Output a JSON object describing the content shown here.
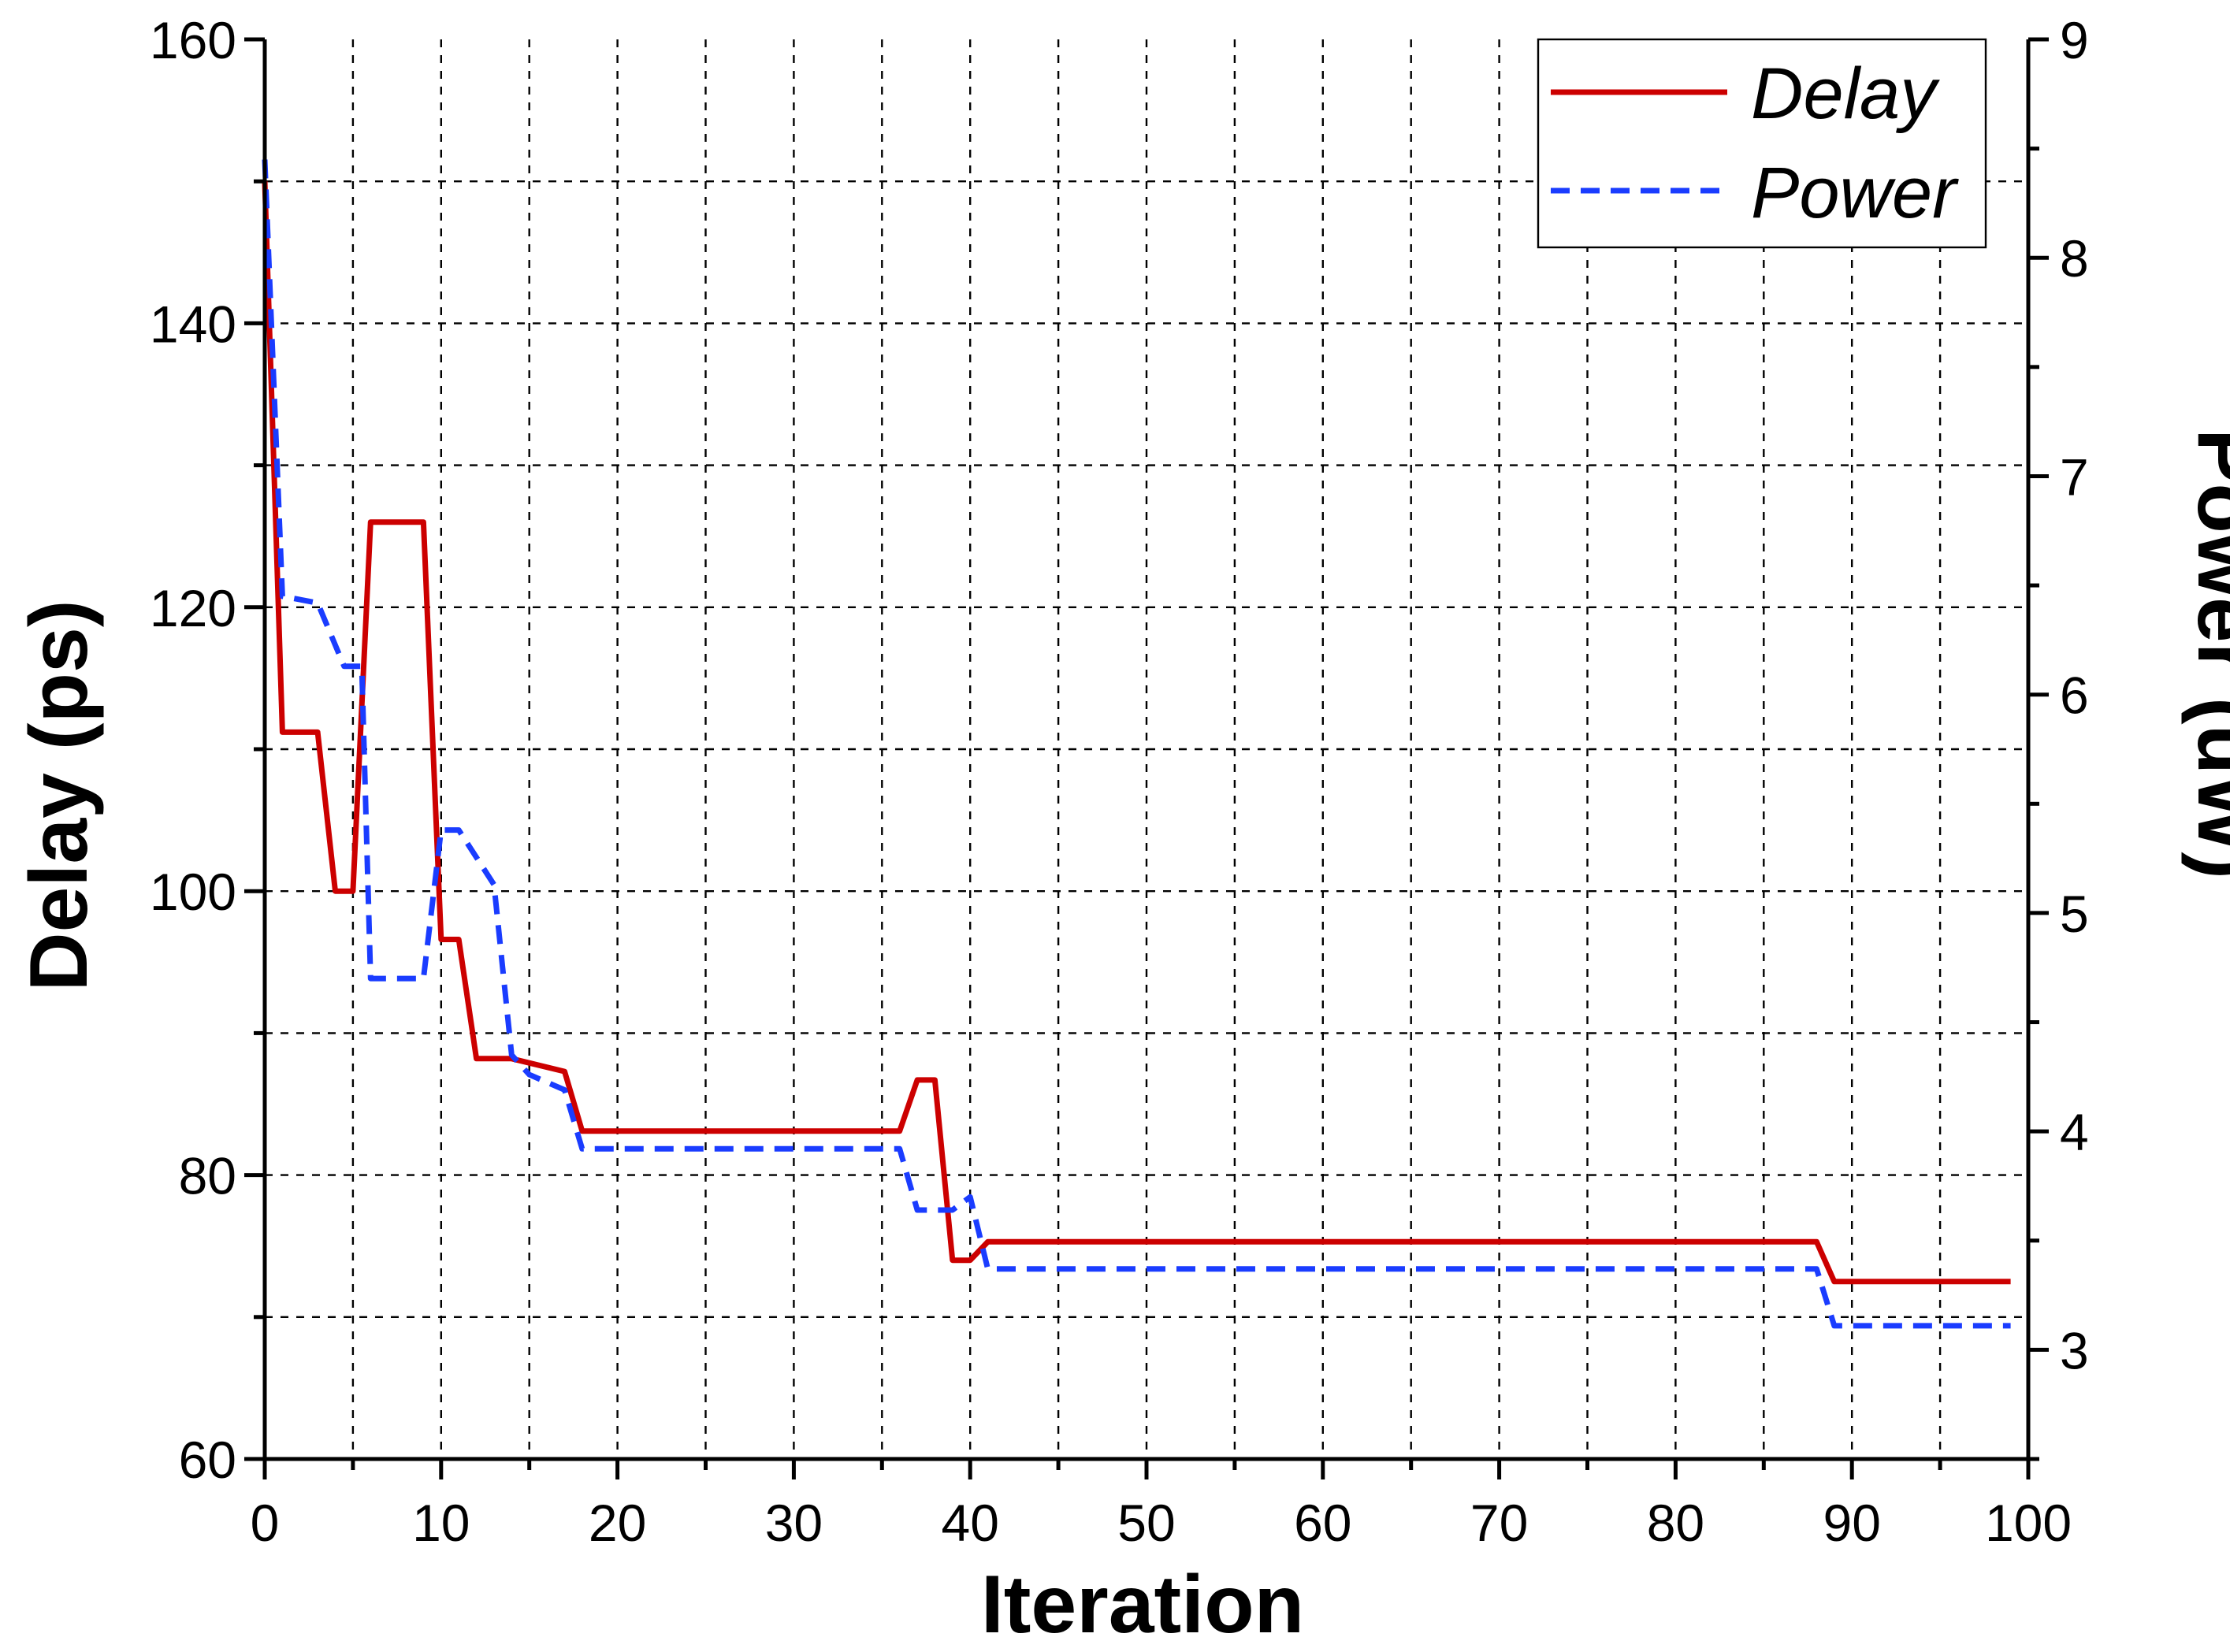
{
  "chart_data": {
    "type": "line",
    "title": "",
    "xlabel": "Iteration",
    "ylabel": "Delay (ps)",
    "y2label": "Power (uW)",
    "xlim": [
      0,
      100
    ],
    "ylim": [
      60,
      160
    ],
    "y2lim": [
      2.5,
      9
    ],
    "x_ticks": [
      0,
      10,
      20,
      30,
      40,
      50,
      60,
      70,
      80,
      90,
      100
    ],
    "x_tick_labels": [
      "0",
      "10",
      "20",
      "30",
      "40",
      "50",
      "60",
      "70",
      "80",
      "90",
      "100"
    ],
    "y_ticks": [
      60,
      80,
      100,
      120,
      140,
      160
    ],
    "y_tick_labels": [
      "60",
      "80",
      "100",
      "120",
      "140",
      "160"
    ],
    "y2_ticks": [
      3,
      4,
      5,
      6,
      7,
      8,
      9
    ],
    "y2_tick_labels": [
      "3",
      "4",
      "5",
      "6",
      "7",
      "8",
      "9"
    ],
    "grid": true,
    "legend_position": "top-right",
    "series": [
      {
        "name": "Delay",
        "axis": "left",
        "color": "#cc0000",
        "style": "solid",
        "x": [
          0,
          1,
          3,
          4,
          5,
          6,
          9,
          10,
          11,
          12,
          14,
          17,
          18,
          36,
          37,
          38,
          39,
          40,
          41,
          88,
          89,
          99
        ],
        "y": [
          150,
          111.2,
          111.2,
          100,
          100,
          126,
          126,
          96.6,
          96.6,
          88.2,
          88.2,
          87.3,
          83.1,
          83.1,
          86.7,
          86.7,
          74,
          74,
          75.3,
          75.3,
          72.5,
          72.5
        ]
      },
      {
        "name": "Power",
        "axis": "right",
        "color": "#1a3cff",
        "style": "dashed",
        "x": [
          0,
          1,
          3,
          4.5,
          5.5,
          6,
          9,
          10,
          11,
          13,
          14,
          15,
          17,
          18,
          36,
          37,
          39,
          40,
          41,
          88,
          89,
          99
        ],
        "y": [
          8.45,
          6.45,
          6.42,
          6.13,
          6.13,
          4.7,
          4.7,
          5.38,
          5.38,
          5.13,
          4.35,
          4.26,
          4.19,
          3.92,
          3.92,
          3.64,
          3.64,
          3.7,
          3.37,
          3.37,
          3.11,
          3.11
        ]
      }
    ]
  }
}
